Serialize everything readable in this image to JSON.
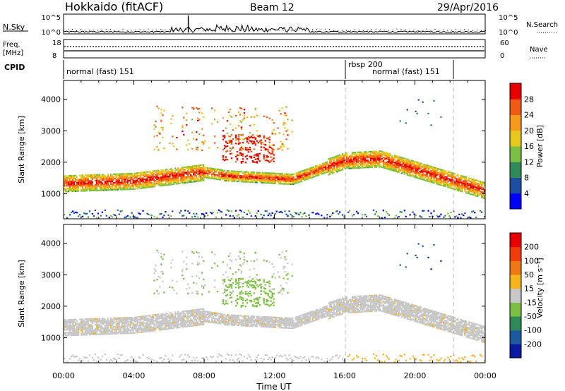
{
  "header": {
    "station": "Hokkaido (fitACF)",
    "beam": "Beam 12",
    "date": "29/Apr/2016"
  },
  "noise_panel": {
    "left_label": "N.Sky",
    "right_label": "N.Search",
    "ticks": [
      "10^5",
      "10^0"
    ]
  },
  "freq_panel": {
    "left_label_1": "Freq.",
    "left_label_2": "[MHz]",
    "left_ticks": [
      "18",
      "8"
    ],
    "right_label": "Nave",
    "right_ticks": [
      "60",
      "0"
    ]
  },
  "cpid_panel": {
    "label": "CPID",
    "segments": [
      "normal (fast) 151",
      "rbsp 200",
      "normal (fast) 151"
    ]
  },
  "chart_data": [
    {
      "type": "heatmap",
      "title": "",
      "xlabel": "Time UT",
      "ylabel": "Slant Range [km]",
      "x_ticks": [
        "00:00",
        "04:00",
        "08:00",
        "12:00",
        "16:00",
        "20:00",
        "00:00"
      ],
      "y_ticks": [
        "1000",
        "2000",
        "3000",
        "4000"
      ],
      "xlim": [
        0,
        24
      ],
      "ylim": [
        200,
        4600
      ],
      "colorbar": {
        "label": "Power [dB]",
        "ticks": [
          "4",
          "8",
          "12",
          "16",
          "20",
          "24",
          "28"
        ],
        "colors": [
          "#0000ff",
          "#1c4fa0",
          "#2e8b57",
          "#7cc043",
          "#e8c81a",
          "#f59a1b",
          "#f05a14",
          "#e80000"
        ]
      },
      "dashed_lines_hours": [
        16,
        22
      ]
    },
    {
      "type": "heatmap",
      "title": "",
      "xlabel": "Time UT",
      "ylabel": "Slant Range [km]",
      "x_ticks": [
        "00:00",
        "04:00",
        "08:00",
        "12:00",
        "16:00",
        "20:00",
        "00:00"
      ],
      "y_ticks": [
        "1000",
        "2000",
        "3000",
        "4000"
      ],
      "xlim": [
        0,
        24
      ],
      "ylim": [
        200,
        4600
      ],
      "colorbar": {
        "label": "Velocity [m s⁻¹]",
        "ticks": [
          "200",
          "100",
          "50",
          "15",
          "-15",
          "-50",
          "-100",
          "-200"
        ],
        "colors": [
          "#0a1aa0",
          "#1c5aa0",
          "#2e8b57",
          "#7cc043",
          "#c8c8c8",
          "#f5b41b",
          "#f07814",
          "#f03c0a",
          "#e80000"
        ]
      },
      "dashed_lines_hours": [
        16,
        22
      ]
    }
  ],
  "footer": {
    "x_axis_label": "Time UT"
  }
}
